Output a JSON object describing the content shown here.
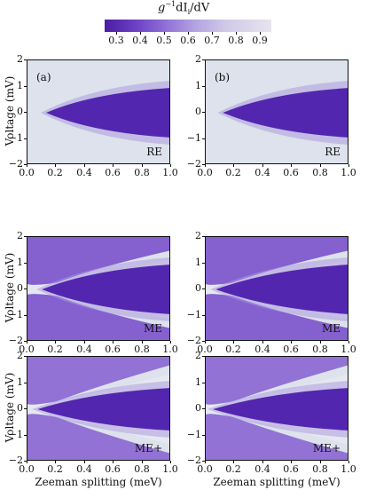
{
  "chart_data": {
    "type": "heatmap",
    "xlabel": "Zeeman splitting (meV)",
    "ylabel": "Voltage (mV)",
    "xlim": [
      0.0,
      1.0
    ],
    "ylim": [
      -2,
      2
    ],
    "x_ticks": [
      "0.0",
      "0.2",
      "0.4",
      "0.6",
      "0.8",
      "1.0"
    ],
    "y_ticks": [
      "2",
      "1",
      "0",
      "−1",
      "−2"
    ],
    "colorbar": {
      "label_prefix": "g",
      "label_sup": "−1",
      "label_mid": "dI",
      "label_sub": "i",
      "label_end": "/dV",
      "range": [
        0.25,
        0.95
      ],
      "ticks": [
        "0.3",
        "0.4",
        "0.5",
        "0.6",
        "0.7",
        "0.8",
        "0.9"
      ],
      "colors": [
        "#4b1da4",
        "#e6e4ed"
      ]
    },
    "columns": [
      "(a)",
      "(b)"
    ],
    "rows": [
      "RE",
      "ME",
      "ME+"
    ]
  }
}
